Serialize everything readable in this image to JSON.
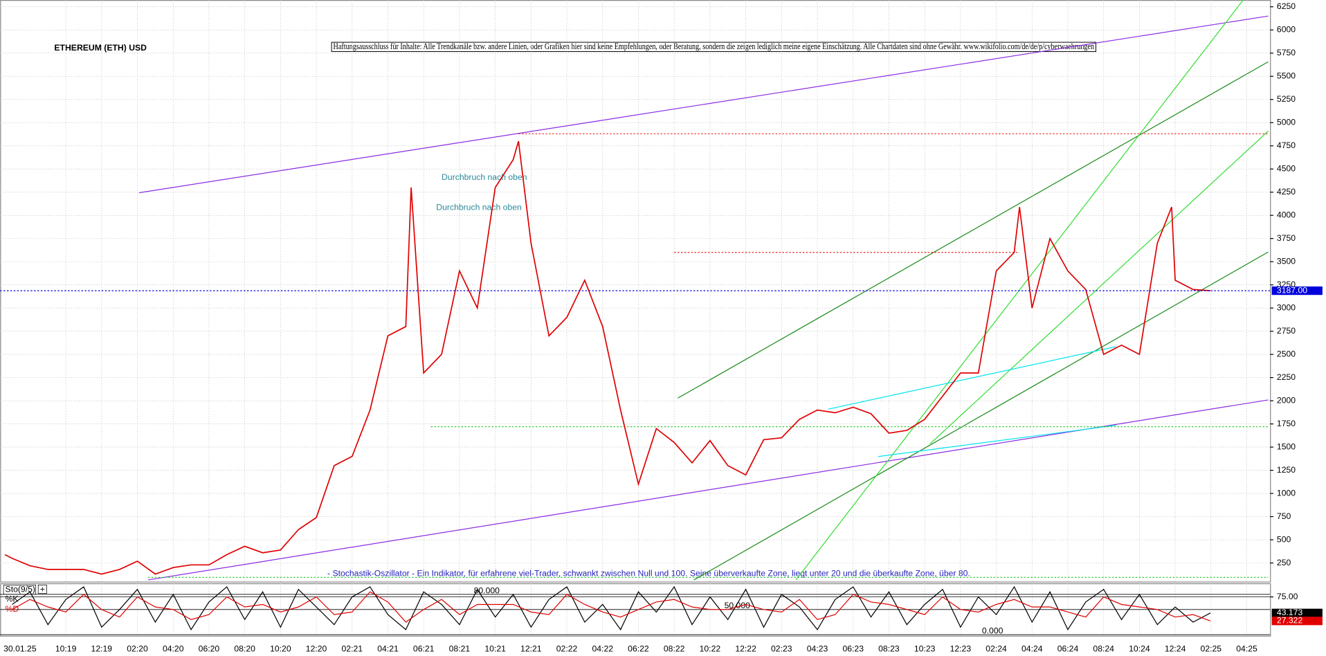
{
  "chart_data": [
    {
      "type": "line",
      "title": "ETHEREUM (ETH) USD",
      "disclaimer": "Haftungsausschluss für Inhalte: Alle Trendkanäle bzw. andere Linien, oder Grafiken hier sind keine Empfehlungen, oder Beratung, sondern die zeigen lediglich meine eigene Einschätzung. Alle Chartdaten sind ohne Gewähr. www.wikifolio.com/de/de/p/cyberwaehrungen",
      "note": "- Stochastik-Oszillator - Ein Indikator, für erfahrene viel-Trader, schwankt zwischen Null und 100. Seine überverkaufte Zone, liegt unter 20 und die überkaufte Zone, über 80.",
      "x": [
        5.6,
        6,
        7,
        8,
        9,
        10,
        11,
        12,
        13,
        14,
        15,
        16,
        17,
        18,
        19,
        20,
        21,
        22,
        23,
        24,
        25,
        26,
        27,
        28,
        28.3,
        29,
        30,
        31,
        32,
        33,
        34,
        34.3,
        35,
        36,
        37,
        38,
        39,
        40,
        41,
        42,
        43,
        44,
        45,
        46,
        47,
        48,
        49,
        50,
        51,
        52,
        53,
        54,
        55,
        56,
        57,
        58,
        59,
        60,
        61,
        62,
        62.3,
        63,
        64,
        65,
        66,
        67,
        68,
        69,
        70,
        70.8,
        71,
        72,
        72.97
      ],
      "series": [
        {
          "color": "#e00000",
          "values": [
            340,
            300,
            220,
            180,
            180,
            180,
            130,
            180,
            270,
            130,
            200,
            230,
            230,
            340,
            430,
            360,
            390,
            610,
            740,
            1300,
            1400,
            1900,
            2700,
            2800,
            4300,
            2300,
            2500,
            3400,
            3000,
            4300,
            4600,
            4800,
            3700,
            2700,
            2900,
            3300,
            2800,
            1900,
            1100,
            1700,
            1550,
            1330,
            1570,
            1300,
            1200,
            1580,
            1600,
            1800,
            1900,
            1870,
            1930,
            1860,
            1650,
            1680,
            1800,
            2050,
            2300,
            2300,
            3400,
            3600,
            4090,
            3000,
            3750,
            3400,
            3200,
            2500,
            2600,
            2500,
            3700,
            4090,
            3300,
            3200,
            3187
          ]
        }
      ],
      "xlim": [
        5.33,
        76.3
      ],
      "ylim": [
        49,
        6323
      ],
      "yticks": [
        250,
        500,
        750,
        1000,
        1250,
        1500,
        1750,
        2000,
        2250,
        2500,
        2750,
        3000,
        3250,
        3500,
        3750,
        4000,
        4250,
        4500,
        4750,
        5000,
        5250,
        5500,
        5750,
        6000,
        6250
      ],
      "grid": true,
      "last_price": {
        "value": 3187,
        "label": "3187.00",
        "color": "#0000dd"
      },
      "annotations": [
        {
          "text": "Durchbruch nach oben",
          "x": 30.0,
          "y": 4408
        },
        {
          "text": "Durchbruch nach oben",
          "x": 29.7,
          "y": 4080
        }
      ],
      "trendlines": [
        {
          "color": "#8a2be2",
          "dashed": false,
          "points": [
            [
              13.1,
              4244
            ],
            [
              76.2,
              6150
            ]
          ]
        },
        {
          "color": "#8a2be2",
          "dashed": false,
          "points": [
            [
              13.6,
              67
            ],
            [
              76.2,
              2009
            ]
          ]
        },
        {
          "color": "#1a8a1a",
          "dashed": false,
          "points": [
            [
              43.2,
              2028
            ],
            [
              76.2,
              5657
            ]
          ]
        },
        {
          "color": "#1a8a1a",
          "dashed": false,
          "points": [
            [
              44.1,
              67
            ],
            [
              76.2,
              3605
            ]
          ]
        },
        {
          "color": "#33dd33",
          "dashed": false,
          "points": [
            [
              49.8,
              67
            ],
            [
              74.8,
              6323
            ]
          ]
        },
        {
          "color": "#33dd33",
          "dashed": false,
          "points": [
            [
              57.3,
              1535
            ],
            [
              76.2,
              4910
            ]
          ]
        },
        {
          "color": "#00e5ee",
          "dashed": false,
          "points": [
            [
              51.6,
              1909
            ],
            [
              67.7,
              2584
            ]
          ]
        },
        {
          "color": "#00e5ee",
          "dashed": false,
          "points": [
            [
              54.4,
              1398
            ],
            [
              67.7,
              1736
            ]
          ]
        },
        {
          "color": "#ee2222",
          "dashed": true,
          "points": [
            [
              34.3,
              4880
            ],
            [
              76.2,
              4880
            ]
          ]
        },
        {
          "color": "#ee2222",
          "dashed": true,
          "points": [
            [
              43.0,
              3600
            ],
            [
              62.3,
              3600
            ]
          ]
        },
        {
          "color": "#33cc33",
          "dashed": true,
          "points": [
            [
              29.4,
              1720
            ],
            [
              76.2,
              1720
            ]
          ]
        },
        {
          "color": "#33cc33",
          "dashed": true,
          "points": [
            [
              13.6,
              95
            ],
            [
              76.2,
              95
            ]
          ]
        }
      ]
    },
    {
      "type": "line",
      "title": "Sto(9/5)",
      "date_label": "30.01.25",
      "x": [
        6,
        7,
        8,
        9,
        10,
        11,
        12,
        13,
        14,
        15,
        16,
        17,
        18,
        19,
        20,
        21,
        22,
        23,
        24,
        25,
        26,
        27,
        28,
        29,
        30,
        31,
        32,
        33,
        34,
        35,
        36,
        37,
        38,
        39,
        40,
        41,
        42,
        43,
        44,
        45,
        46,
        47,
        48,
        49,
        50,
        51,
        52,
        53,
        54,
        55,
        56,
        57,
        58,
        59,
        60,
        61,
        62,
        63,
        64,
        65,
        66,
        67,
        68,
        69,
        70,
        71,
        72,
        72.97
      ],
      "series": [
        {
          "name": "%K",
          "color": "#000000",
          "values": [
            60,
            85,
            20,
            70,
            95,
            15,
            50,
            90,
            25,
            80,
            10,
            65,
            95,
            30,
            85,
            15,
            90,
            55,
            20,
            75,
            95,
            40,
            10,
            85,
            60,
            20,
            90,
            35,
            80,
            15,
            70,
            95,
            25,
            60,
            10,
            85,
            45,
            95,
            20,
            75,
            30,
            90,
            15,
            80,
            55,
            10,
            70,
            95,
            35,
            85,
            20,
            60,
            90,
            15,
            75,
            40,
            95,
            25,
            85,
            10,
            65,
            90,
            30,
            80,
            20,
            55,
            25,
            43.173
          ]
        },
        {
          "name": "%D",
          "color": "#e00000",
          "values": [
            50,
            70,
            55,
            45,
            80,
            50,
            35,
            75,
            55,
            50,
            30,
            40,
            75,
            55,
            60,
            45,
            55,
            75,
            40,
            45,
            85,
            65,
            25,
            50,
            70,
            40,
            60,
            60,
            60,
            45,
            40,
            80,
            60,
            45,
            35,
            50,
            65,
            70,
            55,
            50,
            50,
            60,
            50,
            45,
            70,
            30,
            40,
            80,
            65,
            60,
            50,
            40,
            75,
            50,
            45,
            60,
            70,
            55,
            55,
            45,
            35,
            75,
            60,
            55,
            50,
            35,
            40,
            27.322
          ]
        }
      ],
      "xlim": [
        5.33,
        76.3
      ],
      "ylim": [
        -2,
        102
      ],
      "yticks": [
        {
          "value": 75,
          "label": "75.00"
        }
      ],
      "levels": [
        {
          "value": 80,
          "label": "80.000",
          "x": 31.8
        },
        {
          "value": 50,
          "label": "50.000",
          "x": 45.8
        },
        {
          "value": 0,
          "label": "0.000",
          "x": 60.2
        }
      ],
      "xticks": [
        {
          "value": 9,
          "label": "10:19"
        },
        {
          "value": 11,
          "label": "12:19"
        },
        {
          "value": 13,
          "label": "02:20"
        },
        {
          "value": 15,
          "label": "04:20"
        },
        {
          "value": 17,
          "label": "06:20"
        },
        {
          "value": 19,
          "label": "08:20"
        },
        {
          "value": 21,
          "label": "10:20"
        },
        {
          "value": 23,
          "label": "12:20"
        },
        {
          "value": 25,
          "label": "02:21"
        },
        {
          "value": 27,
          "label": "04:21"
        },
        {
          "value": 29,
          "label": "06:21"
        },
        {
          "value": 31,
          "label": "08:21"
        },
        {
          "value": 33,
          "label": "10:21"
        },
        {
          "value": 35,
          "label": "12:21"
        },
        {
          "value": 37,
          "label": "02:22"
        },
        {
          "value": 39,
          "label": "04:22"
        },
        {
          "value": 41,
          "label": "06:22"
        },
        {
          "value": 43,
          "label": "08:22"
        },
        {
          "value": 45,
          "label": "10:22"
        },
        {
          "value": 47,
          "label": "12:22"
        },
        {
          "value": 49,
          "label": "02:23"
        },
        {
          "value": 51,
          "label": "04:23"
        },
        {
          "value": 53,
          "label": "06:23"
        },
        {
          "value": 55,
          "label": "08:23"
        },
        {
          "value": 57,
          "label": "10:23"
        },
        {
          "value": 59,
          "label": "12:23"
        },
        {
          "value": 61,
          "label": "02:24"
        },
        {
          "value": 63,
          "label": "04:24"
        },
        {
          "value": 65,
          "label": "06:24"
        },
        {
          "value": 67,
          "label": "08:24"
        },
        {
          "value": 69,
          "label": "10:24"
        },
        {
          "value": 71,
          "label": "12:24"
        },
        {
          "value": 73,
          "label": "02:25"
        },
        {
          "value": 75,
          "label": "04:25"
        }
      ]
    }
  ]
}
